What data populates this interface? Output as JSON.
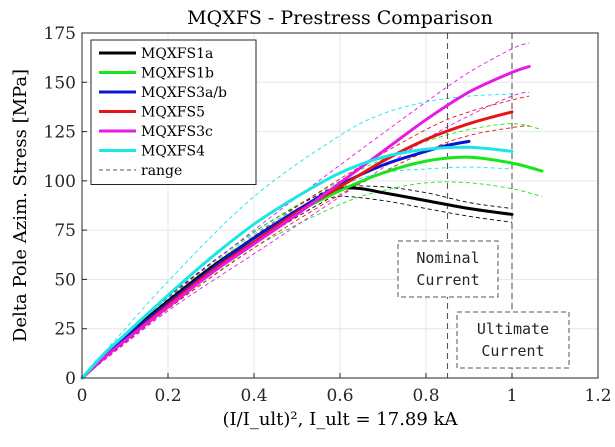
{
  "chart_data": {
    "type": "line",
    "title": "MQXFS - Prestress Comparison",
    "xlabel": "(I/I_ult)², I_ult = 17.89 kA",
    "ylabel": "Delta Pole Azim. Stress [MPa]",
    "xlim": [
      0,
      1.2
    ],
    "ylim": [
      0,
      175
    ],
    "xticks": [
      "0",
      "0.2",
      "0.4",
      "0.6",
      "0.8",
      "1",
      "1.2"
    ],
    "yticks": [
      "0",
      "25",
      "50",
      "75",
      "100",
      "125",
      "150",
      "175"
    ],
    "grid": true,
    "legend_position": "top-left",
    "series": [
      {
        "name": "MQXFS1a",
        "color": "#000000",
        "x": [
          0,
          0.05,
          0.1,
          0.2,
          0.3,
          0.4,
          0.5,
          0.55,
          0.6,
          0.65,
          0.7,
          0.8,
          0.9,
          1.0
        ],
        "y": [
          0,
          11,
          21,
          39,
          56,
          71,
          85,
          91,
          96,
          96,
          94,
          90,
          86,
          83
        ],
        "range": [
          {
            "x": [
              0,
              0.2,
              0.4,
              0.55,
              0.6,
              0.7,
              0.8,
              0.9,
              1.0
            ],
            "y": [
              0,
              41,
              74,
              93,
              97,
              97,
              94,
              89,
              86
            ]
          },
          {
            "x": [
              0,
              0.2,
              0.4,
              0.55,
              0.6,
              0.7,
              0.8,
              0.9,
              1.0
            ],
            "y": [
              0,
              37,
              68,
              88,
              92,
              90,
              86,
              82,
              79
            ]
          }
        ]
      },
      {
        "name": "MQXFS1b",
        "color": "#19e619",
        "x": [
          0,
          0.05,
          0.1,
          0.2,
          0.3,
          0.4,
          0.5,
          0.6,
          0.7,
          0.8,
          0.9,
          1.0,
          1.07
        ],
        "y": [
          0,
          10,
          20,
          38,
          55,
          71,
          84,
          95,
          104,
          110,
          112,
          109,
          105
        ],
        "range": [
          {
            "x": [
              0,
              0.2,
              0.4,
              0.6,
              0.7,
              0.8,
              0.9,
              1.0,
              1.07
            ],
            "y": [
              0,
              40,
              74,
              100,
              111,
              120,
              126,
              129,
              126
            ]
          },
          {
            "x": [
              0,
              0.2,
              0.4,
              0.6,
              0.7,
              0.8,
              0.9,
              1.0,
              1.07
            ],
            "y": [
              0,
              35,
              66,
              88,
              95,
              99,
              99,
              96,
              92
            ]
          }
        ]
      },
      {
        "name": "MQXFS3a/b",
        "color": "#0a14d2",
        "x": [
          0,
          0.05,
          0.1,
          0.2,
          0.3,
          0.4,
          0.5,
          0.6,
          0.7,
          0.8,
          0.85,
          0.9
        ],
        "y": [
          0,
          10,
          20,
          38,
          55,
          71,
          85,
          98,
          108,
          115,
          118,
          120
        ],
        "range": []
      },
      {
        "name": "MQXFS5",
        "color": "#e61414",
        "x": [
          0,
          0.05,
          0.1,
          0.2,
          0.3,
          0.4,
          0.5,
          0.6,
          0.7,
          0.8,
          0.9,
          1.0
        ],
        "y": [
          0,
          10,
          19,
          37,
          54,
          69,
          84,
          97,
          110,
          121,
          129,
          135
        ],
        "range": [
          {
            "x": [
              0,
              0.2,
              0.4,
              0.6,
              0.8,
              0.9,
              1.0,
              1.04
            ],
            "y": [
              0,
              39,
              72,
              101,
              126,
              135,
              141,
              143
            ]
          },
          {
            "x": [
              0,
              0.2,
              0.4,
              0.6,
              0.8,
              0.9,
              1.0,
              1.04
            ],
            "y": [
              0,
              35,
              66,
              93,
              115,
              123,
              127,
              128
            ]
          }
        ]
      },
      {
        "name": "MQXFS3c",
        "color": "#e619e6",
        "x": [
          0,
          0.05,
          0.1,
          0.2,
          0.3,
          0.4,
          0.5,
          0.6,
          0.7,
          0.8,
          0.9,
          1.0,
          1.04
        ],
        "y": [
          0,
          10,
          19,
          36,
          53,
          68,
          83,
          99,
          115,
          131,
          145,
          155,
          158
        ],
        "range": [
          {
            "x": [
              0,
              0.2,
              0.4,
              0.6,
              0.8,
              0.9,
              1.0,
              1.04
            ],
            "y": [
              0,
              40,
              75,
              108,
              140,
              155,
              167,
              170
            ]
          },
          {
            "x": [
              0,
              0.2,
              0.4,
              0.6,
              0.8,
              0.9,
              1.0,
              1.04
            ],
            "y": [
              0,
              34,
              63,
              92,
              121,
              133,
              143,
              145
            ]
          }
        ]
      },
      {
        "name": "MQXFS4",
        "color": "#19e6e6",
        "x": [
          0,
          0.05,
          0.1,
          0.2,
          0.3,
          0.4,
          0.5,
          0.6,
          0.7,
          0.8,
          0.9,
          1.0
        ],
        "y": [
          0,
          12,
          22,
          42,
          61,
          78,
          92,
          104,
          112,
          116,
          117,
          115
        ],
        "range": [
          {
            "x": [
              0,
              0.2,
              0.4,
              0.6,
              0.7,
              0.8,
              0.9,
              1.0
            ],
            "y": [
              0,
              49,
              92,
              123,
              134,
              140,
              143,
              144
            ]
          },
          {
            "x": [
              0,
              0.2,
              0.4,
              0.6,
              0.7,
              0.8,
              0.9,
              1.0
            ],
            "y": [
              0,
              39,
              73,
              97,
              104,
              106,
              107,
              106
            ]
          }
        ]
      }
    ],
    "range_legend": {
      "name": "range",
      "color": "#555555"
    },
    "annotations": [
      {
        "text": [
          "Nominal",
          "Current"
        ],
        "x": 0.85
      },
      {
        "text": [
          "Ultimate",
          "Current"
        ],
        "x": 1.0
      }
    ]
  }
}
